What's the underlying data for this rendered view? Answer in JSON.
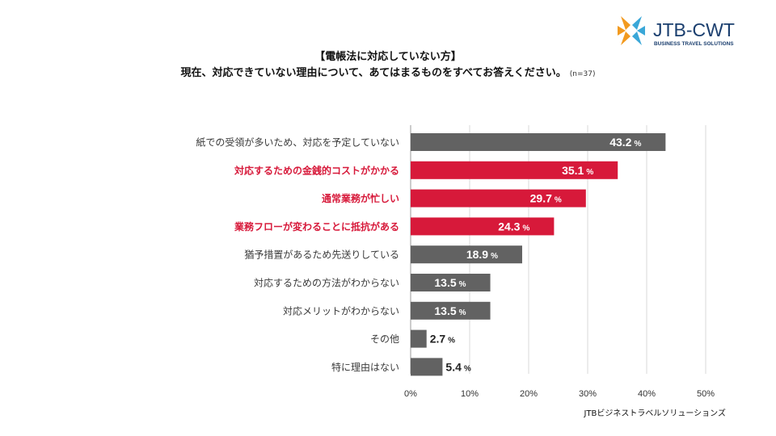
{
  "logo": {
    "name": "JTB-CWT",
    "tagline": "BUSINESS TRAVEL SOLUTIONS",
    "icon": "jtb-cwt-logo-icon"
  },
  "title": {
    "line1": "【電帳法に対応していない方】",
    "line2": "現在、対応できていない理由について、あてはまるものをすべてお答えください。",
    "note": "(n=37)"
  },
  "footer": "JTBビジネストラベルソリューションズ",
  "colors": {
    "gray": "#626262",
    "red": "#d7193a",
    "red_text": "#d7193a",
    "label_text": "#3a3a3a",
    "grid": "#d9d9d9"
  },
  "chart_data": {
    "type": "bar",
    "orientation": "horizontal",
    "categories": [
      "紙での受領が多いため、対応を予定していない",
      "対応するための金銭的コストがかかる",
      "通常業務が忙しい",
      "業務フローが変わることに抵抗がある",
      "猶予措置があるため先送りしている",
      "対応するための方法がわからない",
      "対応メリットがわからない",
      "その他",
      "特に理由はない"
    ],
    "values": [
      43.2,
      35.1,
      29.7,
      24.3,
      18.9,
      13.5,
      13.5,
      2.7,
      5.4
    ],
    "highlighted": [
      false,
      true,
      true,
      true,
      false,
      false,
      false,
      false,
      false
    ],
    "value_unit": "%",
    "xlim": [
      0,
      50
    ],
    "xticks": [
      "0%",
      "10%",
      "20%",
      "30%",
      "40%",
      "50%"
    ],
    "grid": true
  }
}
